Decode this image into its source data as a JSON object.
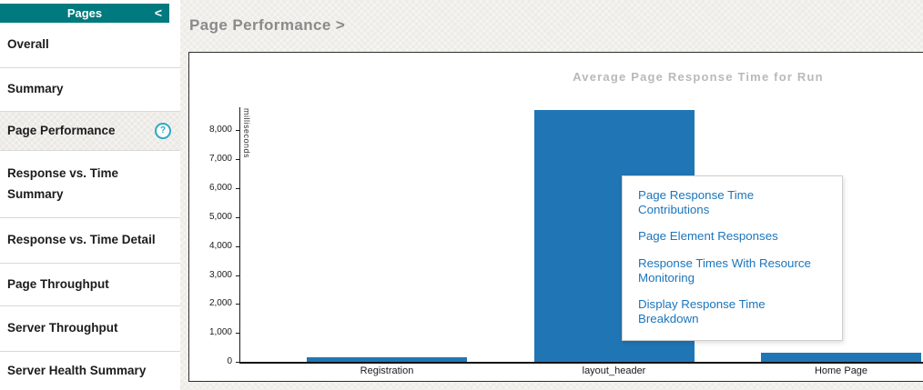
{
  "sidebar": {
    "header": {
      "title": "Pages",
      "collapse_label": "<"
    },
    "items": [
      {
        "label": "Overall",
        "selected": false
      },
      {
        "label": "Summary",
        "selected": false
      },
      {
        "label": "Page Performance",
        "selected": true,
        "help_icon": "?"
      },
      {
        "label": "Response vs. Time Summary",
        "selected": false
      },
      {
        "label": "Response vs. Time Detail",
        "selected": false
      },
      {
        "label": "Page Throughput",
        "selected": false
      },
      {
        "label": "Server Throughput",
        "selected": false
      },
      {
        "label": "Server Health Summary",
        "selected": false
      }
    ]
  },
  "main": {
    "breadcrumb": "Page Performance >"
  },
  "popup_menu": {
    "items": [
      "Page Response Time Contributions",
      "Page Element Responses",
      "Response Times With Resource Monitoring",
      "Display Response Time Breakdown"
    ]
  },
  "chart_data": {
    "type": "bar",
    "title": "Average Page Response Time for Run",
    "xlabel": "",
    "ylabel": "milliseconds",
    "categories": [
      "Registration",
      "layout_header",
      "Home Page"
    ],
    "values": [
      150,
      8700,
      310
    ],
    "ylim": [
      0,
      8800
    ],
    "yticks": [
      0,
      1000,
      2000,
      3000,
      4000,
      5000,
      6000,
      7000,
      8000
    ],
    "bar_color": "#2076B4",
    "grid": false,
    "legend": false
  },
  "colors": {
    "accent_teal": "#007A7E",
    "bar_blue": "#2076B4",
    "link_blue": "#1B75BC",
    "chart_title_gray": "#B9B9B9"
  }
}
